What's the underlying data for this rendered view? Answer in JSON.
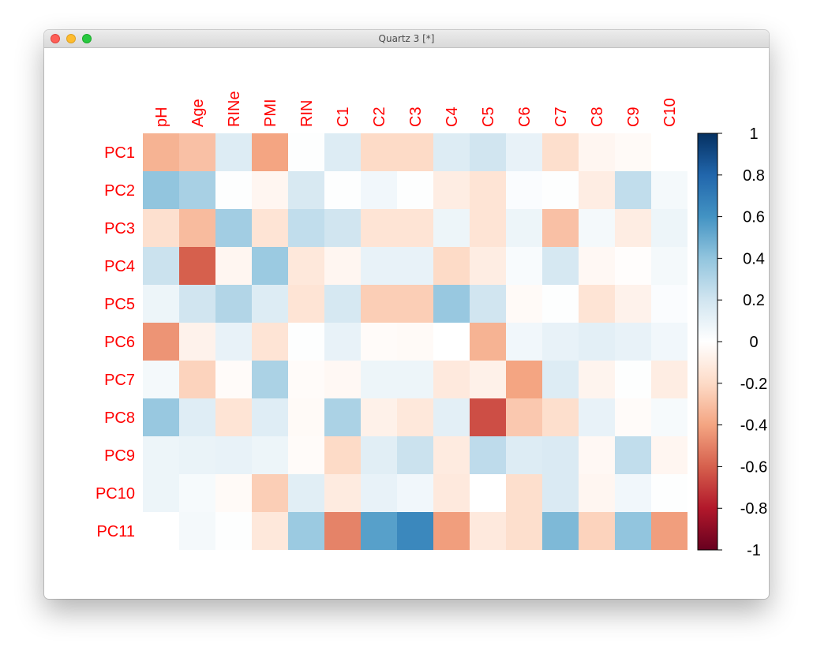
{
  "window": {
    "title": "Quartz 3 [*]"
  },
  "colors": {
    "label": "#ff0000",
    "high": "#053061",
    "mid": "#ffffff",
    "low": "#67001f"
  },
  "chart_data": {
    "type": "heatmap",
    "x": [
      "pH",
      "Age",
      "RINe",
      "PMI",
      "RIN",
      "C1",
      "C2",
      "C3",
      "C4",
      "C5",
      "C6",
      "C7",
      "C8",
      "C9",
      "C10"
    ],
    "y": [
      "PC1",
      "PC2",
      "PC3",
      "PC4",
      "PC5",
      "PC6",
      "PC7",
      "PC8",
      "PC9",
      "PC10",
      "PC11"
    ],
    "values": [
      [
        -0.35,
        -0.3,
        0.15,
        -0.4,
        0.01,
        0.15,
        -0.2,
        -0.2,
        0.15,
        0.2,
        0.1,
        -0.18,
        -0.05,
        -0.03,
        0.0
      ],
      [
        0.4,
        0.33,
        0.01,
        -0.05,
        0.17,
        0.01,
        0.06,
        0.01,
        -0.1,
        -0.15,
        0.02,
        0.01,
        -0.1,
        0.25,
        0.05
      ],
      [
        -0.17,
        -0.32,
        0.35,
        -0.15,
        0.25,
        0.2,
        -0.15,
        -0.15,
        0.08,
        -0.15,
        0.08,
        -0.3,
        0.05,
        -0.1,
        0.08
      ],
      [
        0.22,
        -0.6,
        -0.05,
        0.37,
        -0.13,
        -0.05,
        0.1,
        0.1,
        -0.2,
        -0.1,
        0.03,
        0.18,
        -0.04,
        -0.01,
        0.05
      ],
      [
        0.08,
        0.2,
        0.3,
        0.15,
        -0.15,
        0.18,
        -0.25,
        -0.25,
        0.38,
        0.2,
        -0.03,
        0.01,
        -0.15,
        -0.07,
        0.02
      ],
      [
        -0.45,
        -0.07,
        0.1,
        -0.15,
        0.01,
        0.1,
        -0.02,
        -0.03,
        0.0,
        -0.35,
        0.06,
        0.1,
        0.12,
        0.1,
        0.06
      ],
      [
        0.05,
        -0.23,
        -0.02,
        0.32,
        -0.02,
        -0.04,
        0.08,
        0.08,
        -0.12,
        -0.08,
        -0.4,
        0.15,
        -0.06,
        0.01,
        -0.1
      ],
      [
        0.38,
        0.14,
        -0.15,
        0.14,
        -0.03,
        0.32,
        -0.08,
        -0.13,
        0.12,
        -0.65,
        -0.27,
        -0.18,
        0.1,
        -0.02,
        0.04
      ],
      [
        0.08,
        0.09,
        0.1,
        0.08,
        -0.02,
        -0.2,
        0.13,
        0.22,
        -0.11,
        0.26,
        0.15,
        0.16,
        -0.04,
        0.25,
        -0.05
      ],
      [
        0.08,
        0.04,
        -0.03,
        -0.25,
        0.13,
        -0.11,
        0.1,
        0.06,
        -0.12,
        0.0,
        -0.18,
        0.16,
        -0.05,
        0.06,
        0.01
      ],
      [
        0.0,
        0.05,
        0.01,
        -0.13,
        0.37,
        -0.5,
        0.55,
        0.65,
        -0.42,
        -0.12,
        -0.18,
        0.45,
        -0.23,
        0.4,
        -0.42
      ]
    ],
    "zlim": [
      -1,
      1
    ],
    "colorbar_ticks": [
      "1",
      "0.8",
      "0.6",
      "0.4",
      "0.2",
      "0",
      "-0.2",
      "-0.4",
      "-0.6",
      "-0.8",
      "-1"
    ],
    "legend": "right"
  }
}
